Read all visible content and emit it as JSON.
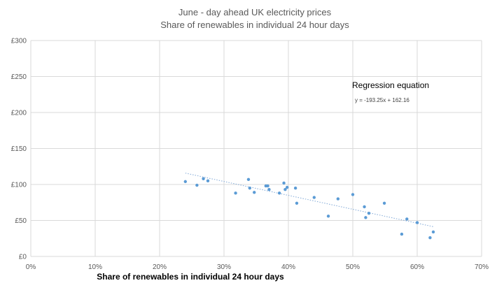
{
  "chart_data": {
    "type": "scatter",
    "title": "June - day ahead UK electricity prices",
    "subtitle": "Share of renewables in individual 24 hour days",
    "xlabel": "Share of renewables in individual 24 hour days",
    "ylabel": "",
    "xlim": [
      0,
      0.7
    ],
    "ylim": [
      0,
      300
    ],
    "x_ticks": [
      "0%",
      "10%",
      "20%",
      "30%",
      "40%",
      "50%",
      "60%",
      "70%"
    ],
    "y_ticks": [
      "£0",
      "£50",
      "£100",
      "£150",
      "£200",
      "£250",
      "£300"
    ],
    "grid": true,
    "legend": "none",
    "colors": {
      "points": "#5B9BD5",
      "trendline": "#7FA7D6",
      "grid": "#D9D9D9"
    },
    "series": [
      {
        "x": [
          0.24,
          0.258,
          0.268,
          0.275,
          0.318,
          0.338,
          0.34,
          0.347,
          0.365,
          0.368,
          0.37,
          0.386,
          0.393,
          0.395,
          0.398,
          0.411,
          0.413,
          0.44,
          0.462,
          0.477,
          0.5,
          0.518,
          0.52,
          0.525,
          0.549,
          0.576,
          0.584,
          0.6,
          0.62,
          0.625
        ],
        "y": [
          104,
          99,
          108,
          105,
          88,
          107,
          95,
          89,
          98,
          98,
          93,
          88,
          102,
          93,
          96,
          95,
          74,
          82,
          56,
          80,
          86,
          69,
          54,
          60,
          74,
          31,
          52,
          47,
          26,
          34
        ]
      }
    ],
    "trendline": {
      "type": "linear",
      "slope": -193.25,
      "intercept": 162.16
    },
    "annotations": {
      "regression_title": "Regression equation",
      "regression_equation": "y = -193.25x + 162.16"
    }
  }
}
